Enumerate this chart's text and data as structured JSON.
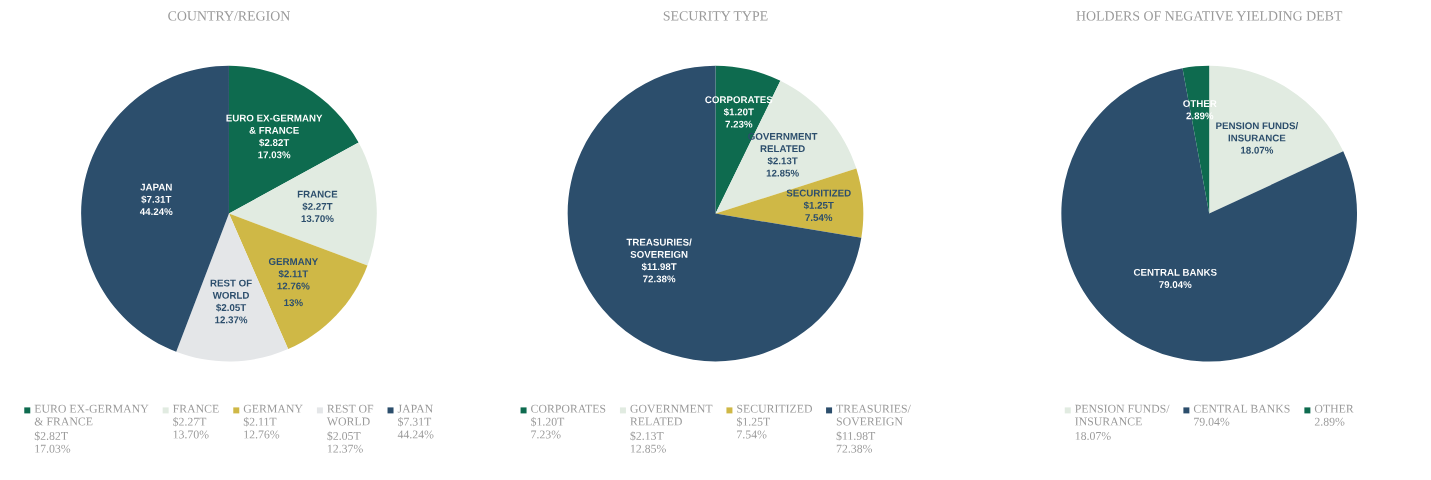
{
  "chart_data": [
    {
      "type": "pie",
      "title": "COUNTRY/REGION",
      "legend": "bottom",
      "categories": [
        "EURO EX-GERMANY\n& FRANCE",
        "FRANCE",
        "GERMANY",
        "REST OF\nWORLD",
        "JAPAN"
      ],
      "values": [
        17.03,
        13.7,
        12.76,
        12.37,
        44.24
      ],
      "colors": [
        "#0e6b4f",
        "#e1ebe1",
        "#cfb846",
        "#e4e6e8",
        "#2c4e6c"
      ],
      "value_labels": [
        "$2.82T\n17.03%",
        "$2.27T\n13.70%",
        "$2.11T\n12.76%",
        "$2.05T\n12.37%",
        "$7.31T\n44.24%"
      ],
      "annotations": [
        {
          "text": "13%",
          "x": "GERMANY"
        }
      ]
    },
    {
      "type": "pie",
      "title": "SECURITY TYPE",
      "legend": "bottom",
      "categories": [
        "CORPORATES",
        "GOVERNMENT\nRELATED",
        "SECURITIZED",
        "TREASURIES/\nSOVEREIGN"
      ],
      "values": [
        7.23,
        12.85,
        7.54,
        72.38
      ],
      "colors": [
        "#0e6b4f",
        "#e1ebe1",
        "#cfb846",
        "#2c4e6c"
      ],
      "value_labels": [
        "$1.20T\n7.23%",
        "$2.13T\n12.85%",
        "$1.25T\n7.54%",
        "$11.98T\n72.38%"
      ]
    },
    {
      "type": "pie",
      "title": "HOLDERS OF NEGATIVE YIELDING DEBT",
      "legend": "bottom",
      "categories": [
        "PENSION FUNDS/\nINSURANCE",
        "CENTRAL BANKS",
        "OTHER"
      ],
      "values": [
        18.07,
        79.04,
        2.89
      ],
      "colors": [
        "#e1ebe1",
        "#2c4e6c",
        "#0e6b4f"
      ],
      "value_labels": [
        "18.07%",
        "79.04%",
        "2.89%"
      ]
    }
  ]
}
